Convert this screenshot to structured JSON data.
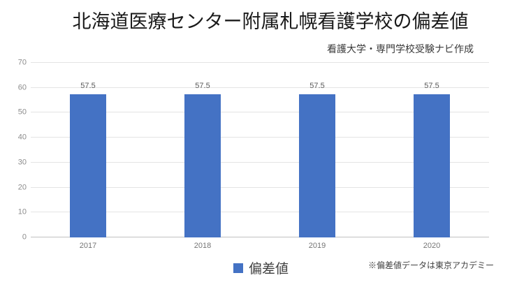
{
  "header": {
    "title": "北海道医療センター附属札幌看護学校の偏差値",
    "subtitle": "看護大学・専門学校受験ナビ作成"
  },
  "legend": {
    "label": "偏差値"
  },
  "footnote": "※偏差値データは東京アカデミー",
  "colors": {
    "bar": "#4472C4",
    "gridline": "#e4e4e4",
    "axis_line": "#c0c0c0",
    "value_label": "#595959",
    "tick_label": "#8c8c8c"
  },
  "chart_data": {
    "type": "bar",
    "title": "北海道医療センター附属札幌看護学校の偏差値",
    "categories": [
      "2017",
      "2018",
      "2019",
      "2020"
    ],
    "values": [
      57.5,
      57.5,
      57.5,
      57.5
    ],
    "series_name": "偏差値",
    "xlabel": "",
    "ylabel": "",
    "ylim": [
      0,
      70
    ],
    "yticks": [
      0,
      10,
      20,
      30,
      40,
      50,
      60,
      70
    ],
    "grid": true,
    "data_labels": true,
    "legend_position": "bottom"
  }
}
